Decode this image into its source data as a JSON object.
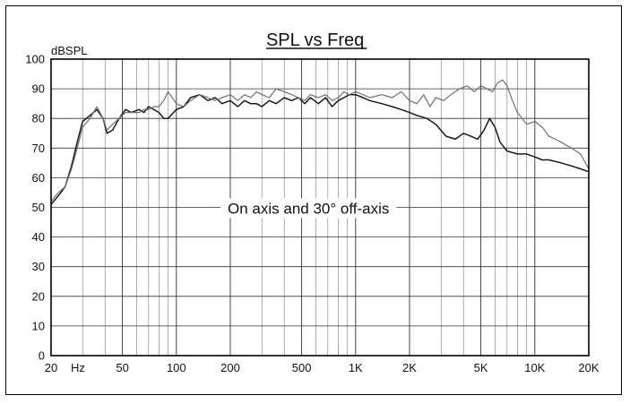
{
  "chart_data": {
    "type": "line",
    "title": "SPL vs Freq",
    "ylabel": "dBSPL",
    "xlabel": "",
    "annotation": "On axis and 30° off-axis",
    "x_scale": "log",
    "xlim": [
      20,
      20000
    ],
    "ylim": [
      0,
      100
    ],
    "grid": true,
    "x_ticks": [
      {
        "value": 20,
        "label": "20"
      },
      {
        "value": 50,
        "label": "50"
      },
      {
        "value": 100,
        "label": "100"
      },
      {
        "value": 200,
        "label": "200"
      },
      {
        "value": 500,
        "label": "500"
      },
      {
        "value": 1000,
        "label": "1K"
      },
      {
        "value": 2000,
        "label": "2K"
      },
      {
        "value": 5000,
        "label": "5K"
      },
      {
        "value": 10000,
        "label": "10K"
      },
      {
        "value": 20000,
        "label": "20K"
      }
    ],
    "x_unit_label": "Hz",
    "y_ticks": [
      0,
      10,
      20,
      30,
      40,
      50,
      60,
      70,
      80,
      90,
      100
    ],
    "series": [
      {
        "color": "#1a1a1a",
        "x": [
          20,
          22,
          24,
          26,
          28,
          30,
          33,
          36,
          39,
          41,
          44,
          48,
          52,
          56,
          62,
          66,
          70,
          75,
          80,
          85,
          90,
          100,
          110,
          120,
          135,
          150,
          165,
          180,
          200,
          220,
          240,
          260,
          280,
          300,
          330,
          360,
          400,
          440,
          480,
          520,
          560,
          620,
          680,
          740,
          800,
          860,
          920,
          1000,
          1100,
          1200,
          1400,
          1600,
          1800,
          2000,
          2200,
          2500,
          2800,
          3200,
          3600,
          4000,
          4400,
          4800,
          5200,
          5600,
          6000,
          6400,
          7000,
          8000,
          9000,
          10000,
          11000,
          12000,
          14000,
          16000,
          18000,
          20000
        ],
        "y": [
          51,
          54,
          57,
          64,
          72,
          79,
          81,
          83,
          80,
          75,
          76,
          80,
          83,
          82,
          83,
          82,
          84,
          83,
          82,
          80,
          80,
          83,
          84,
          87,
          88,
          86,
          87,
          85,
          86,
          84,
          86,
          85,
          85,
          84,
          86,
          85,
          87,
          86,
          87,
          85,
          87,
          85,
          87,
          84,
          86,
          87,
          88,
          88,
          87,
          86,
          85,
          84,
          83,
          82,
          81,
          80,
          78,
          74,
          73,
          75,
          74,
          73,
          76,
          80,
          77,
          72,
          69,
          68,
          68,
          67,
          66,
          66,
          65,
          64,
          63,
          62
        ]
      },
      {
        "color": "#707070",
        "x": [
          20,
          22,
          24,
          26,
          28,
          30,
          33,
          36,
          39,
          41,
          44,
          48,
          52,
          56,
          62,
          66,
          70,
          75,
          80,
          85,
          90,
          100,
          110,
          120,
          135,
          150,
          165,
          180,
          200,
          220,
          240,
          260,
          280,
          300,
          330,
          360,
          400,
          440,
          480,
          520,
          560,
          620,
          680,
          740,
          800,
          860,
          920,
          1000,
          1100,
          1200,
          1400,
          1600,
          1800,
          2000,
          2200,
          2400,
          2600,
          2800,
          3100,
          3400,
          3800,
          4200,
          4600,
          5000,
          5400,
          5800,
          6200,
          6600,
          7000,
          7500,
          8000,
          8500,
          9000,
          10000,
          11000,
          12000,
          13000,
          14000,
          16000,
          18000,
          20000
        ],
        "y": [
          52,
          55,
          57,
          63,
          70,
          77,
          80,
          84,
          80,
          76,
          78,
          80,
          82,
          82,
          82,
          83,
          83,
          84,
          84,
          86,
          89,
          85,
          84,
          86,
          88,
          87,
          86,
          87,
          88,
          86,
          88,
          87,
          89,
          88,
          87,
          90,
          89,
          88,
          87,
          86,
          88,
          87,
          88,
          86,
          87,
          89,
          88,
          89,
          88,
          87,
          88,
          87,
          89,
          86,
          85,
          88,
          84,
          87,
          86,
          88,
          90,
          91,
          89,
          91,
          90,
          89,
          92,
          93,
          91,
          86,
          82,
          80,
          78,
          79,
          77,
          74,
          73,
          72,
          70,
          68,
          63
        ]
      }
    ]
  }
}
